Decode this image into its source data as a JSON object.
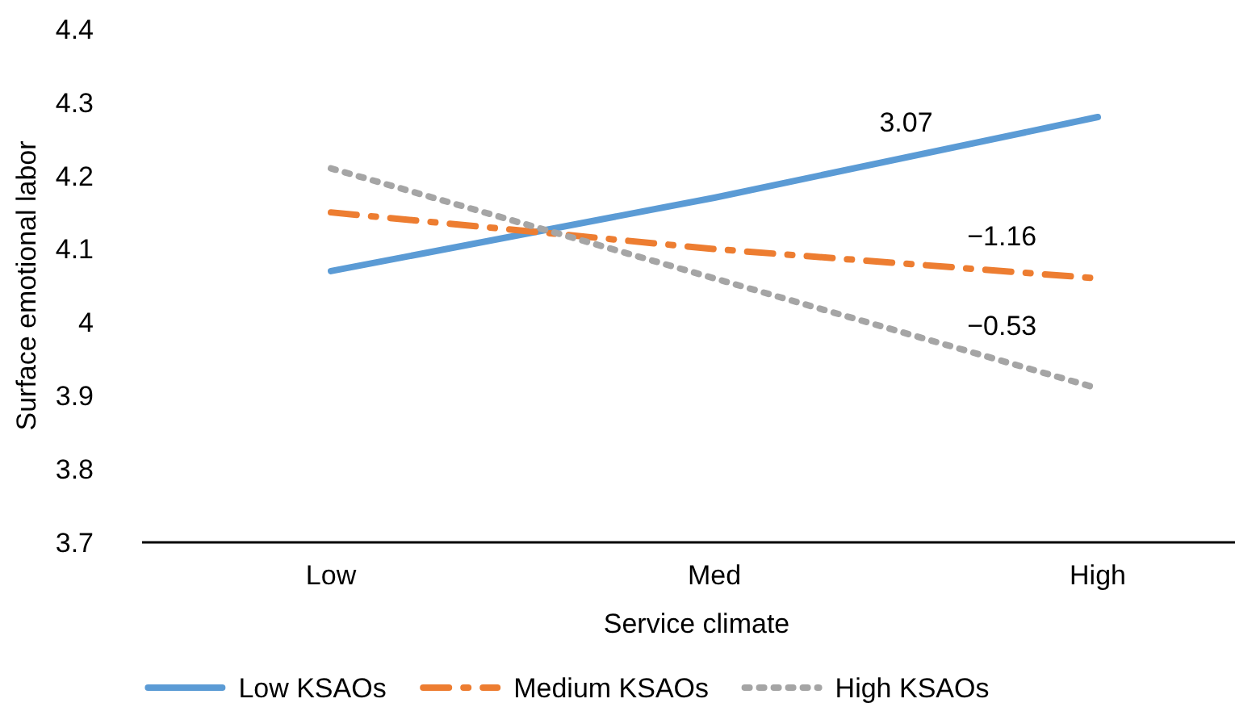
{
  "chart_data": {
    "type": "line",
    "xlabel": "Service climate",
    "ylabel": "Surface emotional labor",
    "categories": [
      "Low",
      "Med",
      "High"
    ],
    "series": [
      {
        "name": "Low KSAOs",
        "color": "#5b9bd5",
        "line_style": "solid",
        "values": [
          4.07,
          4.17,
          4.28
        ]
      },
      {
        "name": "Medium KSAOs",
        "color": "#ed7d31",
        "line_style": "dashed",
        "values": [
          4.15,
          4.1,
          4.06
        ]
      },
      {
        "name": "High KSAOs",
        "color": "#a5a5a5",
        "line_style": "dotted",
        "values": [
          4.21,
          4.06,
          3.91
        ]
      }
    ],
    "ylim": [
      3.7,
      4.4
    ],
    "yticks": [
      3.7,
      3.8,
      3.9,
      {
        "value": 4,
        "label": "4"
      },
      4.1,
      4.2,
      4.3,
      4.4
    ],
    "annotations": [
      "3.07",
      "−1.16",
      "−0.53"
    ],
    "grid": false,
    "legend": "bottom",
    "marker": "none"
  }
}
